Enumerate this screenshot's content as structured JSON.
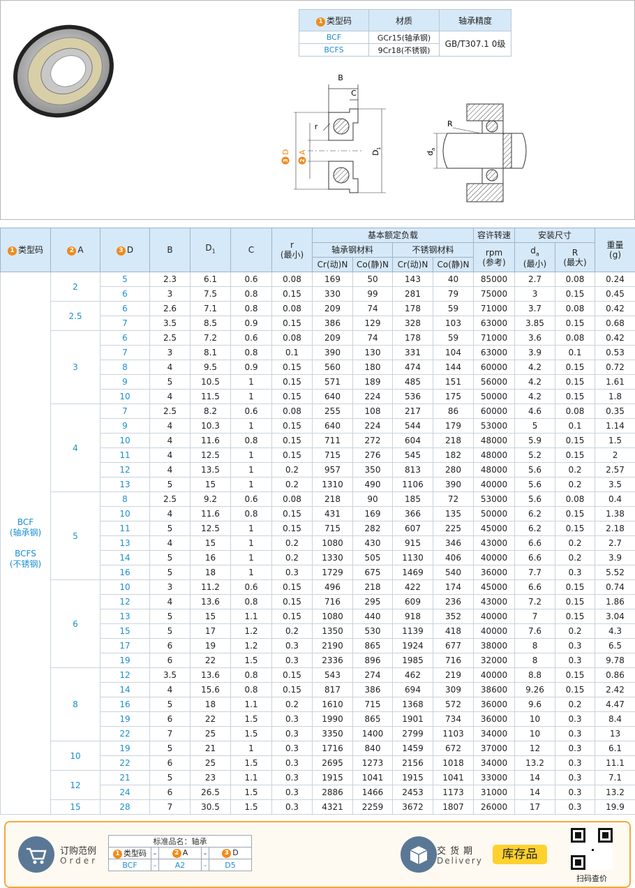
{
  "spec_table": {
    "headers": [
      {
        "badge": "1",
        "text": "类型码"
      },
      "材质",
      "轴承精度"
    ],
    "rows": [
      [
        "BCF",
        "GCr15(轴承钢)"
      ],
      [
        "BCFS",
        "9Cr18(不锈钢)"
      ]
    ],
    "precision": "GB/T307.1 0级"
  },
  "diagram": {
    "B": "B",
    "C": "C",
    "r": "r",
    "D": {
      "badge": "3",
      "text": "D"
    },
    "A": {
      "badge": "2",
      "text": "A"
    },
    "D1": [
      "D",
      "1"
    ],
    "R": "R",
    "da": [
      "d",
      "a"
    ]
  },
  "main_table": {
    "header": {
      "type": {
        "badge": "1",
        "text": "类型码"
      },
      "A": {
        "badge": "2",
        "text": "A"
      },
      "D": {
        "badge": "3",
        "text": "D"
      },
      "B": "B",
      "D1": [
        "D",
        "1"
      ],
      "C": "C",
      "r": [
        "r",
        "(最小)"
      ],
      "load": "基本额定负载",
      "steel": "轴承钢材料",
      "stainless": "不锈钢材料",
      "load_cols": [
        "Cr(动)N",
        "Co(静)N",
        "Cr(动)N",
        "Co(静)N"
      ],
      "speed": "容许转速",
      "rpm": [
        "rpm",
        "(参考)"
      ],
      "install": "安装尺寸",
      "da": [
        "d",
        "a",
        "(最小)"
      ],
      "R": [
        "R",
        "(最大)"
      ],
      "weight": [
        "重量",
        "(g)"
      ]
    },
    "type_code": [
      "BCF",
      "(轴承钢)",
      "BCFS",
      "(不锈钢)"
    ],
    "groups": [
      {
        "A": "2",
        "rows": [
          [
            "5",
            "2.3",
            "6.1",
            "0.6",
            "0.08",
            "169",
            "50",
            "143",
            "40",
            "85000",
            "2.7",
            "0.08",
            "0.24"
          ],
          [
            "6",
            "3",
            "7.5",
            "0.8",
            "0.15",
            "330",
            "99",
            "281",
            "79",
            "75000",
            "3",
            "0.15",
            "0.45"
          ]
        ]
      },
      {
        "A": "2.5",
        "rows": [
          [
            "6",
            "2.6",
            "7.1",
            "0.8",
            "0.08",
            "209",
            "74",
            "178",
            "59",
            "71000",
            "3.7",
            "0.08",
            "0.42"
          ],
          [
            "7",
            "3.5",
            "8.5",
            "0.9",
            "0.15",
            "386",
            "129",
            "328",
            "103",
            "63000",
            "3.85",
            "0.15",
            "0.68"
          ]
        ]
      },
      {
        "A": "3",
        "rows": [
          [
            "6",
            "2.5",
            "7.2",
            "0.6",
            "0.08",
            "209",
            "74",
            "178",
            "59",
            "71000",
            "3.6",
            "0.08",
            "0.42"
          ],
          [
            "7",
            "3",
            "8.1",
            "0.8",
            "0.1",
            "390",
            "130",
            "331",
            "104",
            "63000",
            "3.9",
            "0.1",
            "0.53"
          ],
          [
            "8",
            "4",
            "9.5",
            "0.9",
            "0.15",
            "560",
            "180",
            "474",
            "144",
            "60000",
            "4.2",
            "0.15",
            "0.72"
          ],
          [
            "9",
            "5",
            "10.5",
            "1",
            "0.15",
            "571",
            "189",
            "485",
            "151",
            "56000",
            "4.2",
            "0.15",
            "1.61"
          ],
          [
            "10",
            "4",
            "11.5",
            "1",
            "0.15",
            "640",
            "224",
            "536",
            "175",
            "50000",
            "4.2",
            "0.15",
            "1.8"
          ]
        ]
      },
      {
        "A": "4",
        "rows": [
          [
            "7",
            "2.5",
            "8.2",
            "0.6",
            "0.08",
            "255",
            "108",
            "217",
            "86",
            "60000",
            "4.6",
            "0.08",
            "0.35"
          ],
          [
            "9",
            "4",
            "10.3",
            "1",
            "0.15",
            "640",
            "224",
            "544",
            "179",
            "53000",
            "5",
            "0.1",
            "1.14"
          ],
          [
            "10",
            "4",
            "11.6",
            "0.8",
            "0.15",
            "711",
            "272",
            "604",
            "218",
            "48000",
            "5.9",
            "0.15",
            "1.5"
          ],
          [
            "11",
            "4",
            "12.5",
            "1",
            "0.15",
            "715",
            "276",
            "545",
            "182",
            "48000",
            "5.2",
            "0.15",
            "2"
          ],
          [
            "12",
            "4",
            "13.5",
            "1",
            "0.2",
            "957",
            "350",
            "813",
            "280",
            "48000",
            "5.6",
            "0.2",
            "2.57"
          ],
          [
            "13",
            "5",
            "15",
            "1",
            "0.2",
            "1310",
            "490",
            "1106",
            "390",
            "40000",
            "5.6",
            "0.2",
            "3.5"
          ]
        ]
      },
      {
        "A": "5",
        "rows": [
          [
            "8",
            "2.5",
            "9.2",
            "0.6",
            "0.08",
            "218",
            "90",
            "185",
            "72",
            "53000",
            "5.6",
            "0.08",
            "0.4"
          ],
          [
            "10",
            "4",
            "11.6",
            "0.8",
            "0.15",
            "431",
            "169",
            "366",
            "135",
            "50000",
            "6.2",
            "0.15",
            "1.38"
          ],
          [
            "11",
            "5",
            "12.5",
            "1",
            "0.15",
            "715",
            "282",
            "607",
            "225",
            "45000",
            "6.2",
            "0.15",
            "2.18"
          ],
          [
            "13",
            "4",
            "15",
            "1",
            "0.2",
            "1080",
            "430",
            "915",
            "346",
            "43000",
            "6.6",
            "0.2",
            "2.7"
          ],
          [
            "14",
            "5",
            "16",
            "1",
            "0.2",
            "1330",
            "505",
            "1130",
            "406",
            "40000",
            "6.6",
            "0.2",
            "3.9"
          ],
          [
            "16",
            "5",
            "18",
            "1",
            "0.3",
            "1729",
            "675",
            "1469",
            "540",
            "36000",
            "7.7",
            "0.3",
            "5.52"
          ]
        ]
      },
      {
        "A": "6",
        "rows": [
          [
            "10",
            "3",
            "11.2",
            "0.6",
            "0.15",
            "496",
            "218",
            "422",
            "174",
            "45000",
            "6.6",
            "0.15",
            "0.74"
          ],
          [
            "12",
            "4",
            "13.6",
            "0.8",
            "0.15",
            "716",
            "295",
            "609",
            "236",
            "43000",
            "7.2",
            "0.15",
            "1.86"
          ],
          [
            "13",
            "5",
            "15",
            "1.1",
            "0.15",
            "1080",
            "440",
            "918",
            "352",
            "40000",
            "7",
            "0.15",
            "3.04"
          ],
          [
            "15",
            "5",
            "17",
            "1.2",
            "0.2",
            "1350",
            "530",
            "1139",
            "418",
            "40000",
            "7.6",
            "0.2",
            "4.3"
          ],
          [
            "17",
            "6",
            "19",
            "1.2",
            "0.3",
            "2190",
            "865",
            "1924",
            "677",
            "38000",
            "8",
            "0.3",
            "6.5"
          ],
          [
            "19",
            "6",
            "22",
            "1.5",
            "0.3",
            "2336",
            "896",
            "1985",
            "716",
            "32000",
            "8",
            "0.3",
            "9.78"
          ]
        ]
      },
      {
        "A": "8",
        "rows": [
          [
            "12",
            "3.5",
            "13.6",
            "0.8",
            "0.15",
            "543",
            "274",
            "462",
            "219",
            "40000",
            "8.8",
            "0.15",
            "0.86"
          ],
          [
            "14",
            "4",
            "15.6",
            "0.8",
            "0.15",
            "817",
            "386",
            "694",
            "309",
            "38600",
            "9.26",
            "0.15",
            "2.42"
          ],
          [
            "16",
            "5",
            "18",
            "1.1",
            "0.2",
            "1610",
            "715",
            "1368",
            "572",
            "36000",
            "9.6",
            "0.2",
            "4.47"
          ],
          [
            "19",
            "6",
            "22",
            "1.5",
            "0.3",
            "1990",
            "865",
            "1901",
            "734",
            "36000",
            "10",
            "0.3",
            "8.4"
          ],
          [
            "22",
            "7",
            "25",
            "1.5",
            "0.3",
            "3350",
            "1400",
            "2799",
            "1103",
            "34000",
            "10",
            "0.3",
            "13"
          ]
        ]
      },
      {
        "A": "10",
        "rows": [
          [
            "19",
            "5",
            "21",
            "1",
            "0.3",
            "1716",
            "840",
            "1459",
            "672",
            "37000",
            "12",
            "0.3",
            "6.1"
          ],
          [
            "22",
            "6",
            "25",
            "1.5",
            "0.3",
            "2695",
            "1273",
            "2156",
            "1018",
            "34000",
            "13.2",
            "0.3",
            "11.1"
          ]
        ]
      },
      {
        "A": "12",
        "rows": [
          [
            "21",
            "5",
            "23",
            "1.1",
            "0.3",
            "1915",
            "1041",
            "1915",
            "1041",
            "33000",
            "14",
            "0.3",
            "7.1"
          ],
          [
            "24",
            "6",
            "26.5",
            "1.5",
            "0.3",
            "2886",
            "1466",
            "2453",
            "1173",
            "31000",
            "14",
            "0.3",
            "13.2"
          ]
        ]
      },
      {
        "A": "15",
        "rows": [
          [
            "28",
            "7",
            "30.5",
            "1.5",
            "0.3",
            "4321",
            "2259",
            "3672",
            "1807",
            "26000",
            "17",
            "0.3",
            "19.9"
          ]
        ]
      }
    ]
  },
  "order": {
    "title": "订购范例",
    "title_en": "Order",
    "table_title": "标准品名：轴承",
    "headers": [
      {
        "badge": "1",
        "text": "类型码"
      },
      "-",
      {
        "badge": "2",
        "text": "A"
      },
      "-",
      {
        "badge": "3",
        "text": "D"
      }
    ],
    "values": [
      "BCF",
      "-",
      "A2",
      "-",
      "D5"
    ]
  },
  "delivery": {
    "title": "交货期",
    "title_en": "Delivery",
    "status": "库存品"
  },
  "qr_caption": "扫码查价"
}
